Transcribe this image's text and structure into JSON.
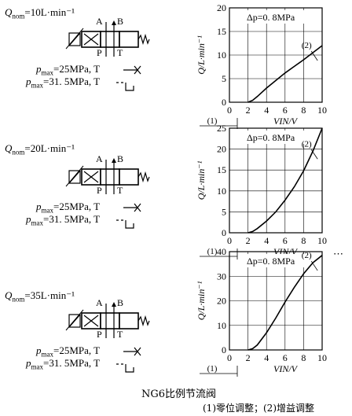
{
  "caption": {
    "title": "NG6比例节流阀",
    "legend": "(1)零位调整；(2)增益调整"
  },
  "ellipsis": "⋯",
  "units": {
    "flow_subscript": "nom",
    "y_axis": "Q/L·min⁻¹",
    "x_axis": "VIN/V"
  },
  "sections": [
    {
      "flow_label": "Q",
      "flow_sub": "nom",
      "flow_value": "=10L·min⁻¹",
      "port_a": "A",
      "port_b": "B",
      "port_p": "P",
      "port_t": "T",
      "pmax1_label": "p",
      "pmax1_sub": "max",
      "pmax1_value": "=25MPa, T",
      "pmax2_label": "p",
      "pmax2_sub": "max",
      "pmax2_value": "=31. 5MPa, T"
    },
    {
      "flow_label": "Q",
      "flow_sub": "nom",
      "flow_value": "=20L·min⁻¹",
      "port_a": "A",
      "port_b": "B",
      "port_p": "P",
      "port_t": "T",
      "pmax1_label": "p",
      "pmax1_sub": "max",
      "pmax1_value": "=25MPa, T",
      "pmax2_label": "p",
      "pmax2_sub": "max",
      "pmax2_value": "=31. 5MPa, T"
    },
    {
      "flow_label": "Q",
      "flow_sub": "nom",
      "flow_value": "=35L·min⁻¹",
      "port_a": "A",
      "port_b": "B",
      "port_p": "P",
      "port_t": "T",
      "pmax1_label": "p",
      "pmax1_sub": "max",
      "pmax1_value": "=25MPa, T",
      "pmax2_label": "p",
      "pmax2_sub": "max",
      "pmax2_value": "=31. 5MPa, T"
    }
  ],
  "chart_data": [
    {
      "type": "line",
      "annotation": "Δp=0. 8MPa",
      "xlabel": "VIN/V",
      "ylabel": "Q/L·min⁻¹",
      "xlim": [
        0,
        10
      ],
      "ylim": [
        0,
        20
      ],
      "xticks": [
        0,
        2,
        4,
        6,
        8,
        10
      ],
      "yticks": [
        0,
        5,
        10,
        15,
        20
      ],
      "marker_1": "(1)",
      "marker_2": "(2)",
      "x": [
        2,
        2.5,
        3,
        4,
        5,
        6,
        7,
        8,
        9,
        10
      ],
      "y": [
        0,
        0.4,
        1.2,
        3.0,
        4.6,
        6.2,
        7.6,
        9.0,
        10.5,
        12.0
      ]
    },
    {
      "type": "line",
      "annotation": "Δp=0. 8MPa",
      "xlabel": "VIN/V",
      "ylabel": "Q/L·min⁻¹",
      "xlim": [
        0,
        10
      ],
      "ylim": [
        0,
        25
      ],
      "xticks": [
        0,
        2,
        4,
        6,
        8,
        10
      ],
      "yticks": [
        0,
        5,
        10,
        15,
        20,
        25
      ],
      "marker_1": "(1)",
      "marker_2": "(2)",
      "x": [
        2,
        2.5,
        3,
        4,
        5,
        6,
        7,
        8,
        9,
        10
      ],
      "y": [
        0,
        0.3,
        1.0,
        2.8,
        5.0,
        7.8,
        11.0,
        14.8,
        19.5,
        25.0
      ]
    },
    {
      "type": "line",
      "annotation": "Δp=0. 8MPa",
      "xlabel": "VIN/V",
      "ylabel": "Q/L·min⁻¹",
      "xlim": [
        0,
        10
      ],
      "ylim": [
        0,
        40
      ],
      "xticks": [
        0,
        2,
        4,
        6,
        8,
        10
      ],
      "yticks": [
        0,
        10,
        20,
        30,
        40
      ],
      "marker_1": "(1)",
      "marker_2": "(2)",
      "x": [
        2,
        2.5,
        3,
        4,
        5,
        6,
        7,
        8,
        9,
        10
      ],
      "y": [
        0,
        0.5,
        2.0,
        7.0,
        13.0,
        19.5,
        25.5,
        31.0,
        35.5,
        38.5
      ]
    }
  ]
}
